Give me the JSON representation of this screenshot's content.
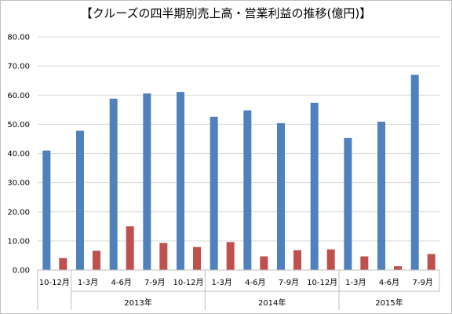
{
  "chart_data": {
    "type": "bar",
    "title": "【クルーズの四半期別売上高・営業利益の推移(億円)】",
    "ylim": [
      0,
      80
    ],
    "yticks": [
      "0.00",
      "10.00",
      "20.00",
      "30.00",
      "40.00",
      "50.00",
      "60.00",
      "70.00",
      "80.00"
    ],
    "grid": true,
    "categories": [
      "10-12月",
      "1-3月",
      "4-6月",
      "7-9月",
      "10-12月",
      "1-3月",
      "4-6月",
      "7-9月",
      "10-12月",
      "1-3月",
      "4-6月",
      "7-9月"
    ],
    "year_groups": [
      {
        "label": "",
        "span": 1
      },
      {
        "label": "2013年",
        "span": 4
      },
      {
        "label": "2014年",
        "span": 4
      },
      {
        "label": "2015年",
        "span": 3
      }
    ],
    "series": [
      {
        "color": "#4f81bd",
        "values": [
          41.0,
          47.8,
          58.8,
          60.6,
          61.1,
          52.6,
          54.8,
          50.4,
          57.4,
          45.3,
          50.9,
          67.0
        ]
      },
      {
        "color": "#c0504d",
        "values": [
          4.1,
          6.6,
          15.0,
          9.3,
          7.9,
          9.6,
          4.7,
          6.8,
          7.1,
          4.7,
          1.3,
          5.5
        ]
      }
    ]
  }
}
